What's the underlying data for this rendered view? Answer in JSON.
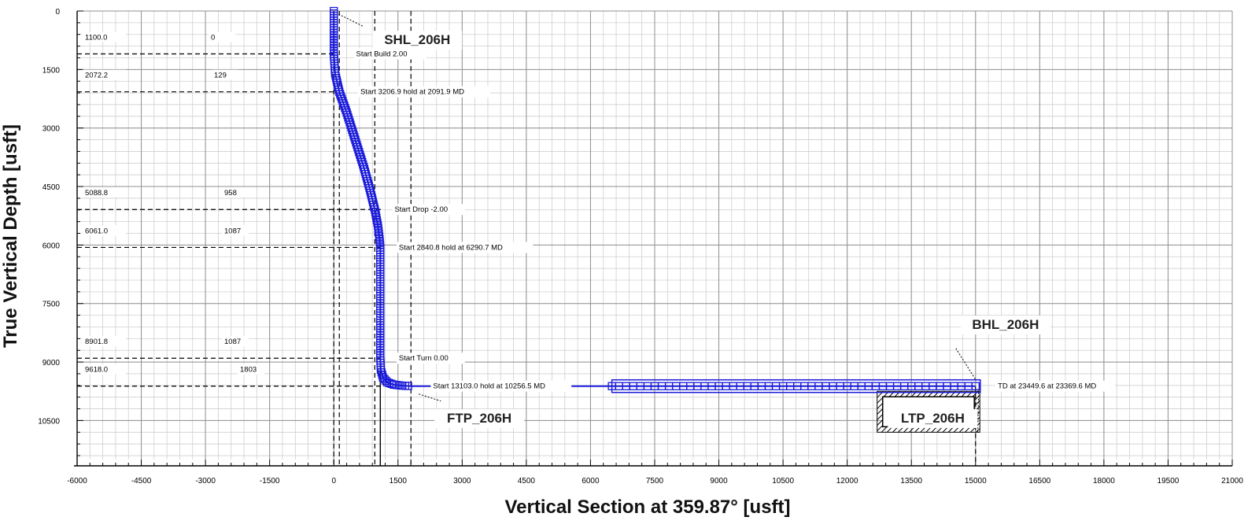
{
  "chart_data": {
    "type": "line",
    "xlabel": "Vertical Section at 359.87° [usft]",
    "ylabel": "True Vertical Depth [usft]",
    "xlim": [
      -6000,
      21000
    ],
    "ylim": [
      0,
      11500
    ],
    "y_inverted": true,
    "grid": true,
    "x_ticks": [
      -6000,
      -4500,
      -3000,
      -1500,
      0,
      1500,
      3000,
      4500,
      6000,
      7500,
      9000,
      10500,
      12000,
      13500,
      15000,
      16500,
      18000,
      19500,
      21000
    ],
    "x_tick_labels": [
      "-6000",
      "-4500",
      "-3000",
      "-1500",
      "0",
      "1500",
      "3000",
      "4500",
      "6000",
      "7500",
      "9000",
      "10500",
      "12000",
      "13500",
      "15000",
      "16500",
      "18000",
      "19500",
      "21000"
    ],
    "y_ticks": [
      0,
      1500,
      3000,
      4500,
      6000,
      7500,
      9000,
      10500
    ],
    "y_tick_labels": [
      "0",
      "1500",
      "3000",
      "4500",
      "6000",
      "7500",
      "9000",
      "10500"
    ],
    "series": [
      {
        "color": "#1a1adb",
        "marker": "square",
        "x": [
          0,
          0,
          0,
          30,
          129,
          300,
          500,
          700,
          850,
          958,
          1030,
          1070,
          1087,
          1087,
          1087,
          1087,
          1087,
          1087,
          1100,
          1150,
          1250,
          1400,
          1600,
          1803,
          3000,
          4500,
          6000,
          6500,
          7500,
          9000,
          10500,
          12000,
          13500,
          15000
        ],
        "y": [
          0,
          500,
          1100.0,
          1600,
          2072.2,
          2600,
          3300,
          4000,
          4600,
          5088.8,
          5500,
          5850,
          6061.0,
          6500,
          7000,
          7500,
          8000,
          8901.8,
          9200,
          9400,
          9520,
          9580,
          9605,
          9618.0,
          9618,
          9618,
          9618,
          9618,
          9618,
          9618,
          9618,
          9618,
          9618,
          9618
        ]
      }
    ],
    "markers_every_x_start": 6500,
    "annotations": [
      {
        "text": "Start Build 2.00",
        "x": 300,
        "y": 1100
      },
      {
        "text": "Start 3206.9 hold at 2091.9 MD",
        "x": 400,
        "y": 2072
      },
      {
        "text": "Start Drop -2.00",
        "x": 1200,
        "y": 5089
      },
      {
        "text": "Start 2840.8  hold at 6290.7 MD",
        "x": 1300,
        "y": 6061
      },
      {
        "text": "Start Turn 0.00",
        "x": 1300,
        "y": 8902
      },
      {
        "text": "Start 13103.0 hold at 10256.5 MD",
        "x": 2100,
        "y": 9618
      },
      {
        "text": "TD at 23449.6 at 23369.6 MD",
        "x": 15300,
        "y": 9618
      }
    ],
    "side_values": [
      {
        "tvd_label": "1100.0",
        "vs_label": "0",
        "y": 1100
      },
      {
        "tvd_label": "2072.2",
        "vs_label": "129",
        "y": 2072
      },
      {
        "tvd_label": "5088.8",
        "vs_label": "958",
        "y": 5089
      },
      {
        "tvd_label": "6061.0",
        "vs_label": "1087",
        "y": 6061
      },
      {
        "tvd_label": "8901.8",
        "vs_label": "1087",
        "y": 8902
      },
      {
        "tvd_label": "9618.0",
        "vs_label": "1803",
        "y": 9618
      }
    ],
    "well_tags": [
      {
        "text": "SHL_206H",
        "x": 1950,
        "y": 850
      },
      {
        "text": "FTP_206H",
        "x": 3400,
        "y": 10550
      },
      {
        "text": "BHL_206H",
        "x": 15700,
        "y": 8150
      },
      {
        "text": "LTP_206H",
        "x": 14000,
        "y": 10550
      }
    ]
  }
}
